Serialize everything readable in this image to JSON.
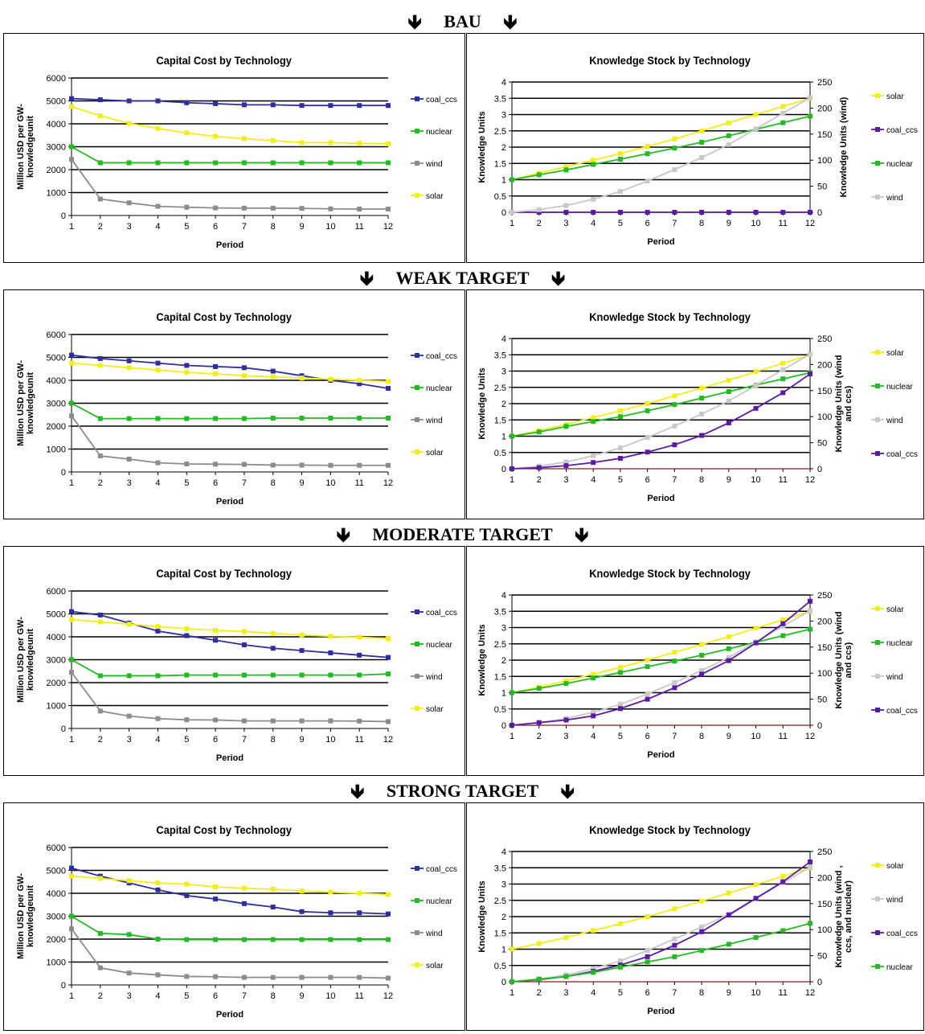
{
  "colors": {
    "coal_ccs": "#2e2e9e",
    "nuclear": "#22bb22",
    "wind": "#8c8c8c",
    "wind_ks": "#c8c8c8",
    "solar": "#f2ee1a",
    "coal_ccs_ks": "#5a1aa6",
    "grid": "#000000",
    "zero": "#8b1a1a"
  },
  "icons": {
    "arrow": "down-arrow-icon"
  },
  "sections": [
    {
      "header": {
        "label": "BAU",
        "arrow": "🡻"
      },
      "cost_chart": {
        "title": "Capital Cost by Technology",
        "ylabel": "Million USD per GW-knowledgeunit",
        "xlabel": "Period"
      },
      "knowledge_chart": {
        "title": "Knowledge Stock by Technology",
        "ylabel": "Knowledge Units",
        "y2label": "Knowledge Units (wind)",
        "xlabel": "Period"
      }
    },
    {
      "header": {
        "label": "WEAK TARGET",
        "arrow": "🡻"
      },
      "cost_chart": {
        "title": "Capital Cost by Technology",
        "ylabel": "Million USD per GW-knowledgeunit",
        "xlabel": "Period"
      },
      "knowledge_chart": {
        "title": "Knowledge Stock by Technology",
        "ylabel": "Knowledge Units",
        "y2label": "Knowledge Units (wind and ccs)",
        "xlabel": "Period"
      }
    },
    {
      "header": {
        "label": "MODERATE TARGET",
        "arrow": "🡻"
      },
      "cost_chart": {
        "title": "Capital Cost by Technology",
        "ylabel": "Million USD per GW-knowledgeunit",
        "xlabel": "Period"
      },
      "knowledge_chart": {
        "title": "Knowledge Stock by Technology",
        "ylabel": "Knowledge Units",
        "y2label": "Knowledge Units (wind and ccs)",
        "xlabel": "Period"
      }
    },
    {
      "header": {
        "label": "STRONG TARGET",
        "arrow": "🡻"
      },
      "cost_chart": {
        "title": "Capital Cost by Technology",
        "ylabel": "Million USD per GW-knowledgeunit",
        "xlabel": "Period"
      },
      "knowledge_chart": {
        "title": "Knowledge Stock by Technology",
        "ylabel": "Knowledge Units",
        "y2label": "Knowledge Units (wind , ccs, and nuclear)",
        "xlabel": "Period"
      }
    }
  ],
  "chart_data": [
    {
      "type": "line",
      "title": "Capital Cost by Technology",
      "scenario": "BAU",
      "xlabel": "Period",
      "ylabel": "Million USD per GW-knowledgeunit",
      "x": [
        1,
        2,
        3,
        4,
        5,
        6,
        7,
        8,
        9,
        10,
        11,
        12
      ],
      "xticks": [
        "1",
        "2",
        "3",
        "4",
        "5",
        "6",
        "7",
        "8",
        "9",
        "10",
        "11",
        "12"
      ],
      "ylim": [
        0,
        6000
      ],
      "yticks": [
        "0",
        "1000",
        "2000",
        "3000",
        "4000",
        "5000",
        "6000"
      ],
      "grid": true,
      "legend": "right",
      "series": [
        {
          "name": "coal_ccs",
          "axis": "left",
          "values": [
            5100,
            5050,
            5000,
            5000,
            4920,
            4880,
            4830,
            4830,
            4800,
            4800,
            4800,
            4800
          ]
        },
        {
          "name": "nuclear",
          "axis": "left",
          "values": [
            3000,
            2300,
            2300,
            2300,
            2300,
            2300,
            2300,
            2300,
            2300,
            2300,
            2300,
            2300
          ]
        },
        {
          "name": "wind",
          "axis": "left",
          "values": [
            2450,
            720,
            550,
            400,
            360,
            330,
            320,
            320,
            310,
            290,
            280,
            280
          ]
        },
        {
          "name": "solar",
          "axis": "left",
          "values": [
            4750,
            4350,
            4020,
            3800,
            3600,
            3450,
            3350,
            3270,
            3180,
            3180,
            3150,
            3120
          ]
        }
      ]
    },
    {
      "type": "line",
      "title": "Knowledge Stock by Technology",
      "scenario": "BAU",
      "xlabel": "Period",
      "ylabel": "Knowledge Units",
      "y2label": "Knowledge Units (wind)",
      "x": [
        1,
        2,
        3,
        4,
        5,
        6,
        7,
        8,
        9,
        10,
        11,
        12
      ],
      "xticks": [
        "1",
        "2",
        "3",
        "4",
        "5",
        "6",
        "7",
        "8",
        "9",
        "10",
        "11",
        "12"
      ],
      "ylim": [
        0,
        4
      ],
      "yticks": [
        "0",
        "0.5",
        "1",
        "1.5",
        "2",
        "2.5",
        "3",
        "3.5",
        "4"
      ],
      "y2lim": [
        0,
        250
      ],
      "y2ticks": [
        "0",
        "50",
        "100",
        "150",
        "200",
        "250"
      ],
      "grid": true,
      "legend": "right",
      "series": [
        {
          "name": "solar",
          "axis": "left",
          "values": [
            1.0,
            1.2,
            1.4,
            1.6,
            1.8,
            2.02,
            2.25,
            2.5,
            2.75,
            3.0,
            3.25,
            3.5
          ]
        },
        {
          "name": "coal_ccs",
          "axis": "left",
          "values": [
            0,
            0,
            0,
            0,
            0,
            0,
            0,
            0,
            0,
            0,
            0,
            0
          ]
        },
        {
          "name": "nuclear",
          "axis": "left",
          "values": [
            1.0,
            1.15,
            1.3,
            1.47,
            1.63,
            1.8,
            1.97,
            2.15,
            2.35,
            2.55,
            2.75,
            2.95
          ]
        },
        {
          "name": "wind",
          "axis": "right",
          "values": [
            0,
            5,
            13,
            25,
            40,
            60,
            82,
            105,
            130,
            160,
            190,
            220
          ]
        }
      ]
    },
    {
      "type": "line",
      "title": "Capital Cost by Technology",
      "scenario": "WEAK TARGET",
      "xlabel": "Period",
      "ylabel": "Million USD per GW-knowledgeunit",
      "x": [
        1,
        2,
        3,
        4,
        5,
        6,
        7,
        8,
        9,
        10,
        11,
        12
      ],
      "xticks": [
        "1",
        "2",
        "3",
        "4",
        "5",
        "6",
        "7",
        "8",
        "9",
        "10",
        "11",
        "12"
      ],
      "ylim": [
        0,
        6000
      ],
      "yticks": [
        "0",
        "1000",
        "2000",
        "3000",
        "4000",
        "5000",
        "6000"
      ],
      "grid": true,
      "legend": "right",
      "series": [
        {
          "name": "coal_ccs",
          "axis": "left",
          "values": [
            5100,
            4950,
            4850,
            4750,
            4650,
            4600,
            4550,
            4400,
            4200,
            4000,
            3850,
            3650
          ]
        },
        {
          "name": "nuclear",
          "axis": "left",
          "values": [
            3000,
            2330,
            2330,
            2330,
            2330,
            2330,
            2330,
            2350,
            2350,
            2350,
            2350,
            2350
          ]
        },
        {
          "name": "wind",
          "axis": "left",
          "values": [
            2450,
            700,
            560,
            400,
            350,
            340,
            330,
            300,
            300,
            290,
            290,
            290
          ]
        },
        {
          "name": "solar",
          "axis": "left",
          "values": [
            4750,
            4650,
            4550,
            4450,
            4350,
            4280,
            4200,
            4150,
            4100,
            4050,
            4000,
            3950
          ]
        }
      ]
    },
    {
      "type": "line",
      "title": "Knowledge Stock by Technology",
      "scenario": "WEAK TARGET",
      "xlabel": "Period",
      "ylabel": "Knowledge Units",
      "y2label": "Knowledge Units (wind and ccs)",
      "x": [
        1,
        2,
        3,
        4,
        5,
        6,
        7,
        8,
        9,
        10,
        11,
        12
      ],
      "xticks": [
        "1",
        "2",
        "3",
        "4",
        "5",
        "6",
        "7",
        "8",
        "9",
        "10",
        "11",
        "12"
      ],
      "ylim": [
        0,
        4
      ],
      "yticks": [
        "0",
        "0.5",
        "1",
        "1.5",
        "2",
        "2.5",
        "3",
        "3.5",
        "4"
      ],
      "y2lim": [
        0,
        250
      ],
      "y2ticks": [
        "0",
        "50",
        "100",
        "150",
        "200",
        "250"
      ],
      "grid": true,
      "legend": "right",
      "series": [
        {
          "name": "solar",
          "axis": "left",
          "values": [
            1.0,
            1.17,
            1.36,
            1.57,
            1.78,
            2.0,
            2.24,
            2.48,
            2.72,
            2.98,
            3.24,
            3.5
          ]
        },
        {
          "name": "nuclear",
          "axis": "left",
          "values": [
            1.0,
            1.13,
            1.3,
            1.45,
            1.6,
            1.78,
            1.97,
            2.17,
            2.37,
            2.57,
            2.76,
            2.95
          ]
        },
        {
          "name": "wind",
          "axis": "right",
          "values": [
            0,
            5,
            13,
            25,
            40,
            60,
            82,
            105,
            130,
            160,
            190,
            220
          ]
        },
        {
          "name": "coal_ccs",
          "axis": "right",
          "values": [
            0,
            2,
            6,
            12,
            20,
            32,
            46,
            64,
            88,
            116,
            146,
            182
          ]
        }
      ]
    },
    {
      "type": "line",
      "title": "Capital Cost by Technology",
      "scenario": "MODERATE TARGET",
      "xlabel": "Period",
      "ylabel": "Million USD per GW-knowledgeunit",
      "x": [
        1,
        2,
        3,
        4,
        5,
        6,
        7,
        8,
        9,
        10,
        11,
        12
      ],
      "xticks": [
        "1",
        "2",
        "3",
        "4",
        "5",
        "6",
        "7",
        "8",
        "9",
        "10",
        "11",
        "12"
      ],
      "ylim": [
        0,
        6000
      ],
      "yticks": [
        "0",
        "1000",
        "2000",
        "3000",
        "4000",
        "5000",
        "6000"
      ],
      "grid": true,
      "legend": "right",
      "series": [
        {
          "name": "coal_ccs",
          "axis": "left",
          "values": [
            5100,
            4950,
            4600,
            4250,
            4050,
            3850,
            3650,
            3500,
            3400,
            3300,
            3200,
            3100
          ]
        },
        {
          "name": "nuclear",
          "axis": "left",
          "values": [
            3000,
            2300,
            2300,
            2300,
            2330,
            2330,
            2330,
            2330,
            2330,
            2330,
            2330,
            2380
          ]
        },
        {
          "name": "wind",
          "axis": "left",
          "values": [
            2450,
            760,
            540,
            430,
            380,
            370,
            330,
            330,
            330,
            330,
            320,
            300
          ]
        },
        {
          "name": "solar",
          "axis": "left",
          "values": [
            4750,
            4650,
            4550,
            4450,
            4350,
            4280,
            4230,
            4150,
            4080,
            4020,
            3980,
            3930
          ]
        }
      ]
    },
    {
      "type": "line",
      "title": "Knowledge Stock by Technology",
      "scenario": "MODERATE TARGET",
      "xlabel": "Period",
      "ylabel": "Knowledge Units",
      "y2label": "Knowledge Units (wind and ccs)",
      "x": [
        1,
        2,
        3,
        4,
        5,
        6,
        7,
        8,
        9,
        10,
        11,
        12
      ],
      "xticks": [
        "1",
        "2",
        "3",
        "4",
        "5",
        "6",
        "7",
        "8",
        "9",
        "10",
        "11",
        "12"
      ],
      "ylim": [
        0,
        4
      ],
      "yticks": [
        "0",
        "0.5",
        "1",
        "1.5",
        "2",
        "2.5",
        "3",
        "3.5",
        "4"
      ],
      "y2lim": [
        0,
        250
      ],
      "y2ticks": [
        "0",
        "50",
        "100",
        "150",
        "200",
        "250"
      ],
      "grid": true,
      "legend": "right",
      "series": [
        {
          "name": "solar",
          "axis": "left",
          "values": [
            1.0,
            1.17,
            1.36,
            1.57,
            1.78,
            2.0,
            2.24,
            2.48,
            2.72,
            2.98,
            3.24,
            3.5
          ]
        },
        {
          "name": "nuclear",
          "axis": "left",
          "values": [
            1.0,
            1.13,
            1.28,
            1.45,
            1.62,
            1.8,
            1.97,
            2.15,
            2.35,
            2.55,
            2.75,
            2.95
          ]
        },
        {
          "name": "wind",
          "axis": "right",
          "values": [
            0,
            5,
            13,
            25,
            40,
            60,
            82,
            105,
            130,
            160,
            190,
            220
          ]
        },
        {
          "name": "coal_ccs",
          "axis": "right",
          "values": [
            0,
            5,
            10,
            18,
            32,
            50,
            72,
            98,
            124,
            158,
            195,
            238
          ]
        }
      ]
    },
    {
      "type": "line",
      "title": "Capital Cost by Technology",
      "scenario": "STRONG TARGET",
      "xlabel": "Period",
      "ylabel": "Million USD per GW-knowledgeunit",
      "x": [
        1,
        2,
        3,
        4,
        5,
        6,
        7,
        8,
        9,
        10,
        11,
        12
      ],
      "xticks": [
        "1",
        "2",
        "3",
        "4",
        "5",
        "6",
        "7",
        "8",
        "9",
        "10",
        "11",
        "12"
      ],
      "ylim": [
        0,
        6000
      ],
      "yticks": [
        "0",
        "1000",
        "2000",
        "3000",
        "4000",
        "5000",
        "6000"
      ],
      "grid": true,
      "legend": "right",
      "series": [
        {
          "name": "coal_ccs",
          "axis": "left",
          "values": [
            5100,
            4750,
            4450,
            4150,
            3900,
            3750,
            3550,
            3400,
            3200,
            3150,
            3150,
            3100
          ]
        },
        {
          "name": "nuclear",
          "axis": "left",
          "values": [
            3000,
            2250,
            2200,
            2000,
            1980,
            1980,
            1980,
            1980,
            1980,
            1980,
            1980,
            1980
          ]
        },
        {
          "name": "wind",
          "axis": "left",
          "values": [
            2450,
            750,
            520,
            440,
            370,
            360,
            330,
            330,
            330,
            330,
            330,
            300
          ]
        },
        {
          "name": "solar",
          "axis": "left",
          "values": [
            4750,
            4650,
            4550,
            4450,
            4400,
            4280,
            4220,
            4180,
            4100,
            4050,
            4000,
            3950
          ]
        }
      ]
    },
    {
      "type": "line",
      "title": "Knowledge Stock by Technology",
      "scenario": "STRONG TARGET",
      "xlabel": "Period",
      "ylabel": "Knowledge Units",
      "y2label": "Knowledge Units (wind , ccs, and nuclear)",
      "x": [
        1,
        2,
        3,
        4,
        5,
        6,
        7,
        8,
        9,
        10,
        11,
        12
      ],
      "xticks": [
        "1",
        "2",
        "3",
        "4",
        "5",
        "6",
        "7",
        "8",
        "9",
        "10",
        "11",
        "12"
      ],
      "ylim": [
        0,
        4
      ],
      "yticks": [
        "0",
        "0.5",
        "1",
        "1.5",
        "2",
        "2.5",
        "3",
        "3.5",
        "4"
      ],
      "y2lim": [
        0,
        250
      ],
      "y2ticks": [
        "0",
        "50",
        "100",
        "150",
        "200",
        "250"
      ],
      "grid": true,
      "legend": "right",
      "series": [
        {
          "name": "solar",
          "axis": "left",
          "values": [
            1.0,
            1.17,
            1.36,
            1.57,
            1.78,
            2.0,
            2.24,
            2.48,
            2.72,
            2.98,
            3.24,
            3.5
          ]
        },
        {
          "name": "wind",
          "axis": "right",
          "values": [
            0,
            5,
            13,
            25,
            40,
            60,
            82,
            105,
            130,
            160,
            190,
            220
          ]
        },
        {
          "name": "coal_ccs",
          "axis": "right",
          "values": [
            0,
            4,
            10,
            20,
            32,
            48,
            70,
            96,
            128,
            160,
            192,
            230
          ]
        },
        {
          "name": "nuclear",
          "axis": "right",
          "values": [
            0,
            5,
            10,
            18,
            28,
            38,
            48,
            60,
            72,
            85,
            98,
            112
          ]
        }
      ]
    }
  ]
}
